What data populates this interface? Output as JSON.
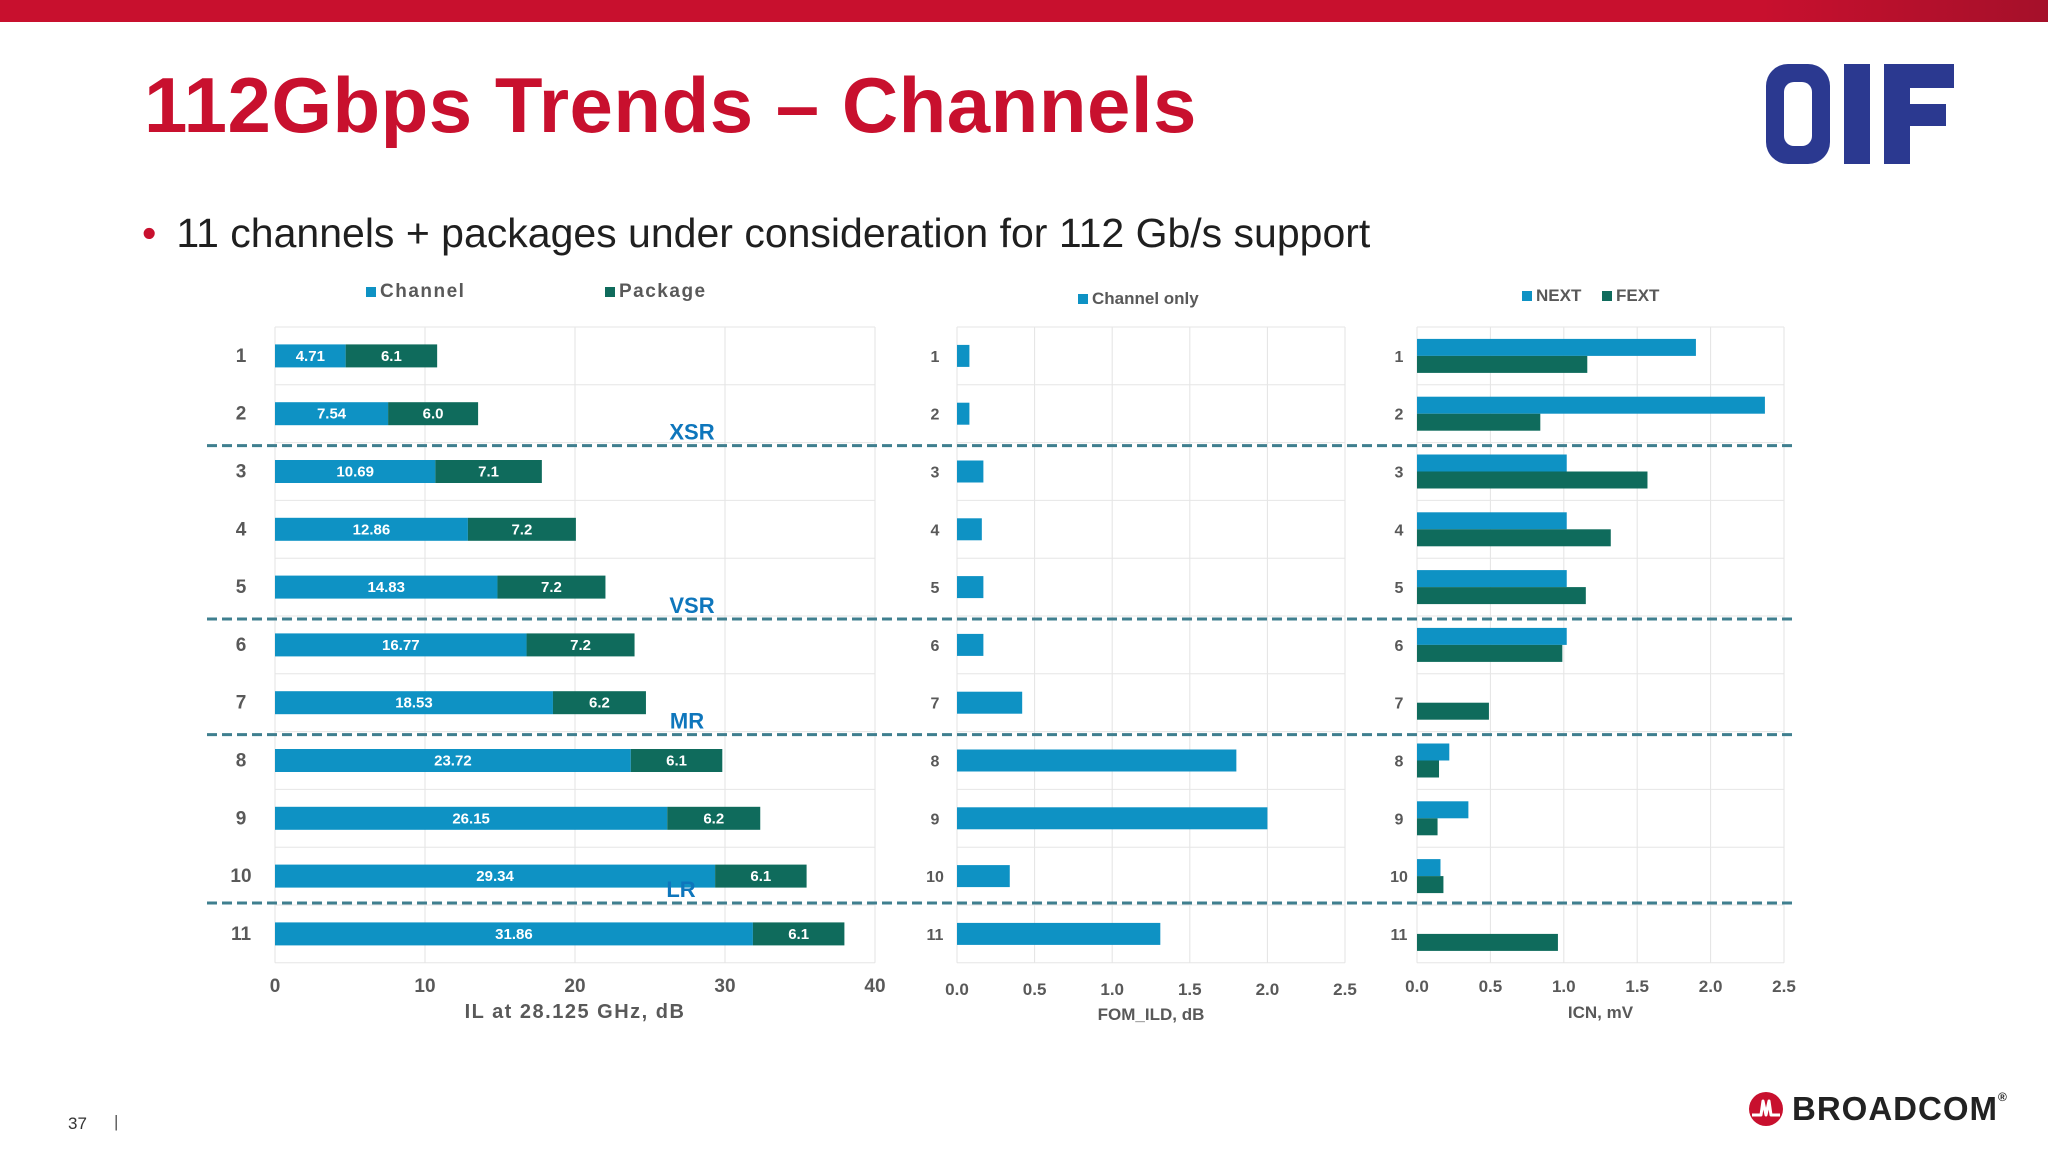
{
  "slide": {
    "title": "112Gbps Trends – Channels",
    "bullet": "11 channels + packages under consideration for 112 Gb/s support",
    "page_number": "37",
    "page_separator": "|",
    "oif_logo_text": "OIF",
    "broadcom_logo_text": "BROADCOM",
    "broadcom_logo_reg": "®",
    "colors": {
      "accent_red": "#c8102e",
      "oif_navy": "#2b3990",
      "series_blue": "#0e92c4",
      "series_teal": "#0f6b5c",
      "band_line": "#3f7f8f",
      "band_label": "#0e76bc"
    }
  },
  "chart_data": [
    {
      "type": "bar",
      "orientation": "horizontal",
      "stacked": true,
      "categories": [
        "1",
        "2",
        "3",
        "4",
        "5",
        "6",
        "7",
        "8",
        "9",
        "10",
        "11"
      ],
      "series": [
        {
          "name": "Channel",
          "color": "#0e92c4",
          "values": [
            4.71,
            7.54,
            10.69,
            12.86,
            14.83,
            16.77,
            18.53,
            23.72,
            26.15,
            29.34,
            31.86
          ]
        },
        {
          "name": "Package",
          "color": "#0f6b5c",
          "values": [
            6.1,
            6.0,
            7.1,
            7.2,
            7.2,
            7.2,
            6.2,
            6.1,
            6.2,
            6.1,
            6.1
          ]
        }
      ],
      "data_labels": {
        "Channel": [
          "4.71",
          "7.54",
          "10.69",
          "12.86",
          "14.83",
          "16.77",
          "18.53",
          "23.72",
          "26.15",
          "29.34",
          "31.86"
        ],
        "Package": [
          "6.1",
          "6.0",
          "7.1",
          "7.2",
          "7.2",
          "7.2",
          "6.2",
          "6.1",
          "6.2",
          "6.1",
          "6.1"
        ]
      },
      "xlabel": "IL at 28.125 GHz, dB",
      "xlim": [
        0,
        40
      ],
      "xticks": [
        "0",
        "10",
        "20",
        "30",
        "40"
      ],
      "legend_position": "top",
      "grid": true
    },
    {
      "type": "bar",
      "orientation": "horizontal",
      "categories": [
        "1",
        "2",
        "3",
        "4",
        "5",
        "6",
        "7",
        "8",
        "9",
        "10",
        "11"
      ],
      "series": [
        {
          "name": "Channel only",
          "color": "#0e92c4",
          "values": [
            0.08,
            0.08,
            0.17,
            0.16,
            0.17,
            0.17,
            0.42,
            1.8,
            2.0,
            0.34,
            1.31
          ]
        }
      ],
      "xlabel": "FOM_ILD, dB",
      "xlim": [
        0,
        2.5
      ],
      "xticks": [
        "0.0",
        "0.5",
        "1.0",
        "1.5",
        "2.0",
        "2.5"
      ],
      "legend_position": "top",
      "grid": true
    },
    {
      "type": "bar",
      "orientation": "horizontal",
      "categories": [
        "1",
        "2",
        "3",
        "4",
        "5",
        "6",
        "7",
        "8",
        "9",
        "10",
        "11"
      ],
      "series": [
        {
          "name": "NEXT",
          "color": "#0e92c4",
          "values": [
            1.9,
            2.37,
            1.02,
            1.02,
            1.02,
            1.02,
            0,
            0.22,
            0.35,
            0.16,
            0
          ]
        },
        {
          "name": "FEXT",
          "color": "#0f6b5c",
          "values": [
            1.16,
            0.84,
            1.57,
            1.32,
            1.15,
            0.99,
            0.49,
            0.15,
            0.14,
            0.18,
            0.96
          ]
        }
      ],
      "xlabel": "ICN, mV",
      "xlim": [
        0,
        2.5
      ],
      "xticks": [
        "0.0",
        "0.5",
        "1.0",
        "1.5",
        "2.0",
        "2.5"
      ],
      "legend_position": "top",
      "grid": true
    }
  ],
  "bands": [
    {
      "label": "XSR",
      "after_row": 2
    },
    {
      "label": "VSR",
      "after_row": 5
    },
    {
      "label": "MR",
      "after_row": 7
    },
    {
      "label": "LR",
      "after_row": 10
    }
  ]
}
